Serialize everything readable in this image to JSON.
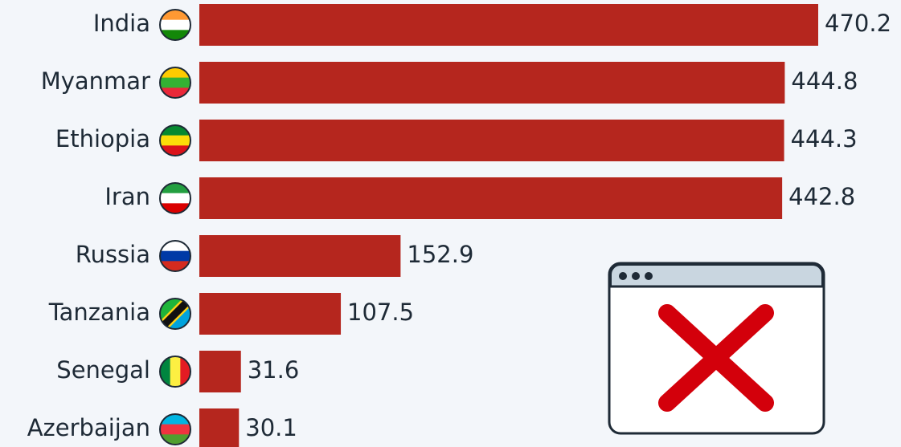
{
  "chart_data": {
    "type": "barh",
    "categories": [
      "India",
      "Myanmar",
      "Ethiopia",
      "Iran",
      "Russia",
      "Tanzania",
      "Senegal",
      "Azerbaijan"
    ],
    "values": [
      470.2,
      444.8,
      444.3,
      442.8,
      152.9,
      107.5,
      31.6,
      30.1
    ],
    "color": "#b5261e"
  }
}
